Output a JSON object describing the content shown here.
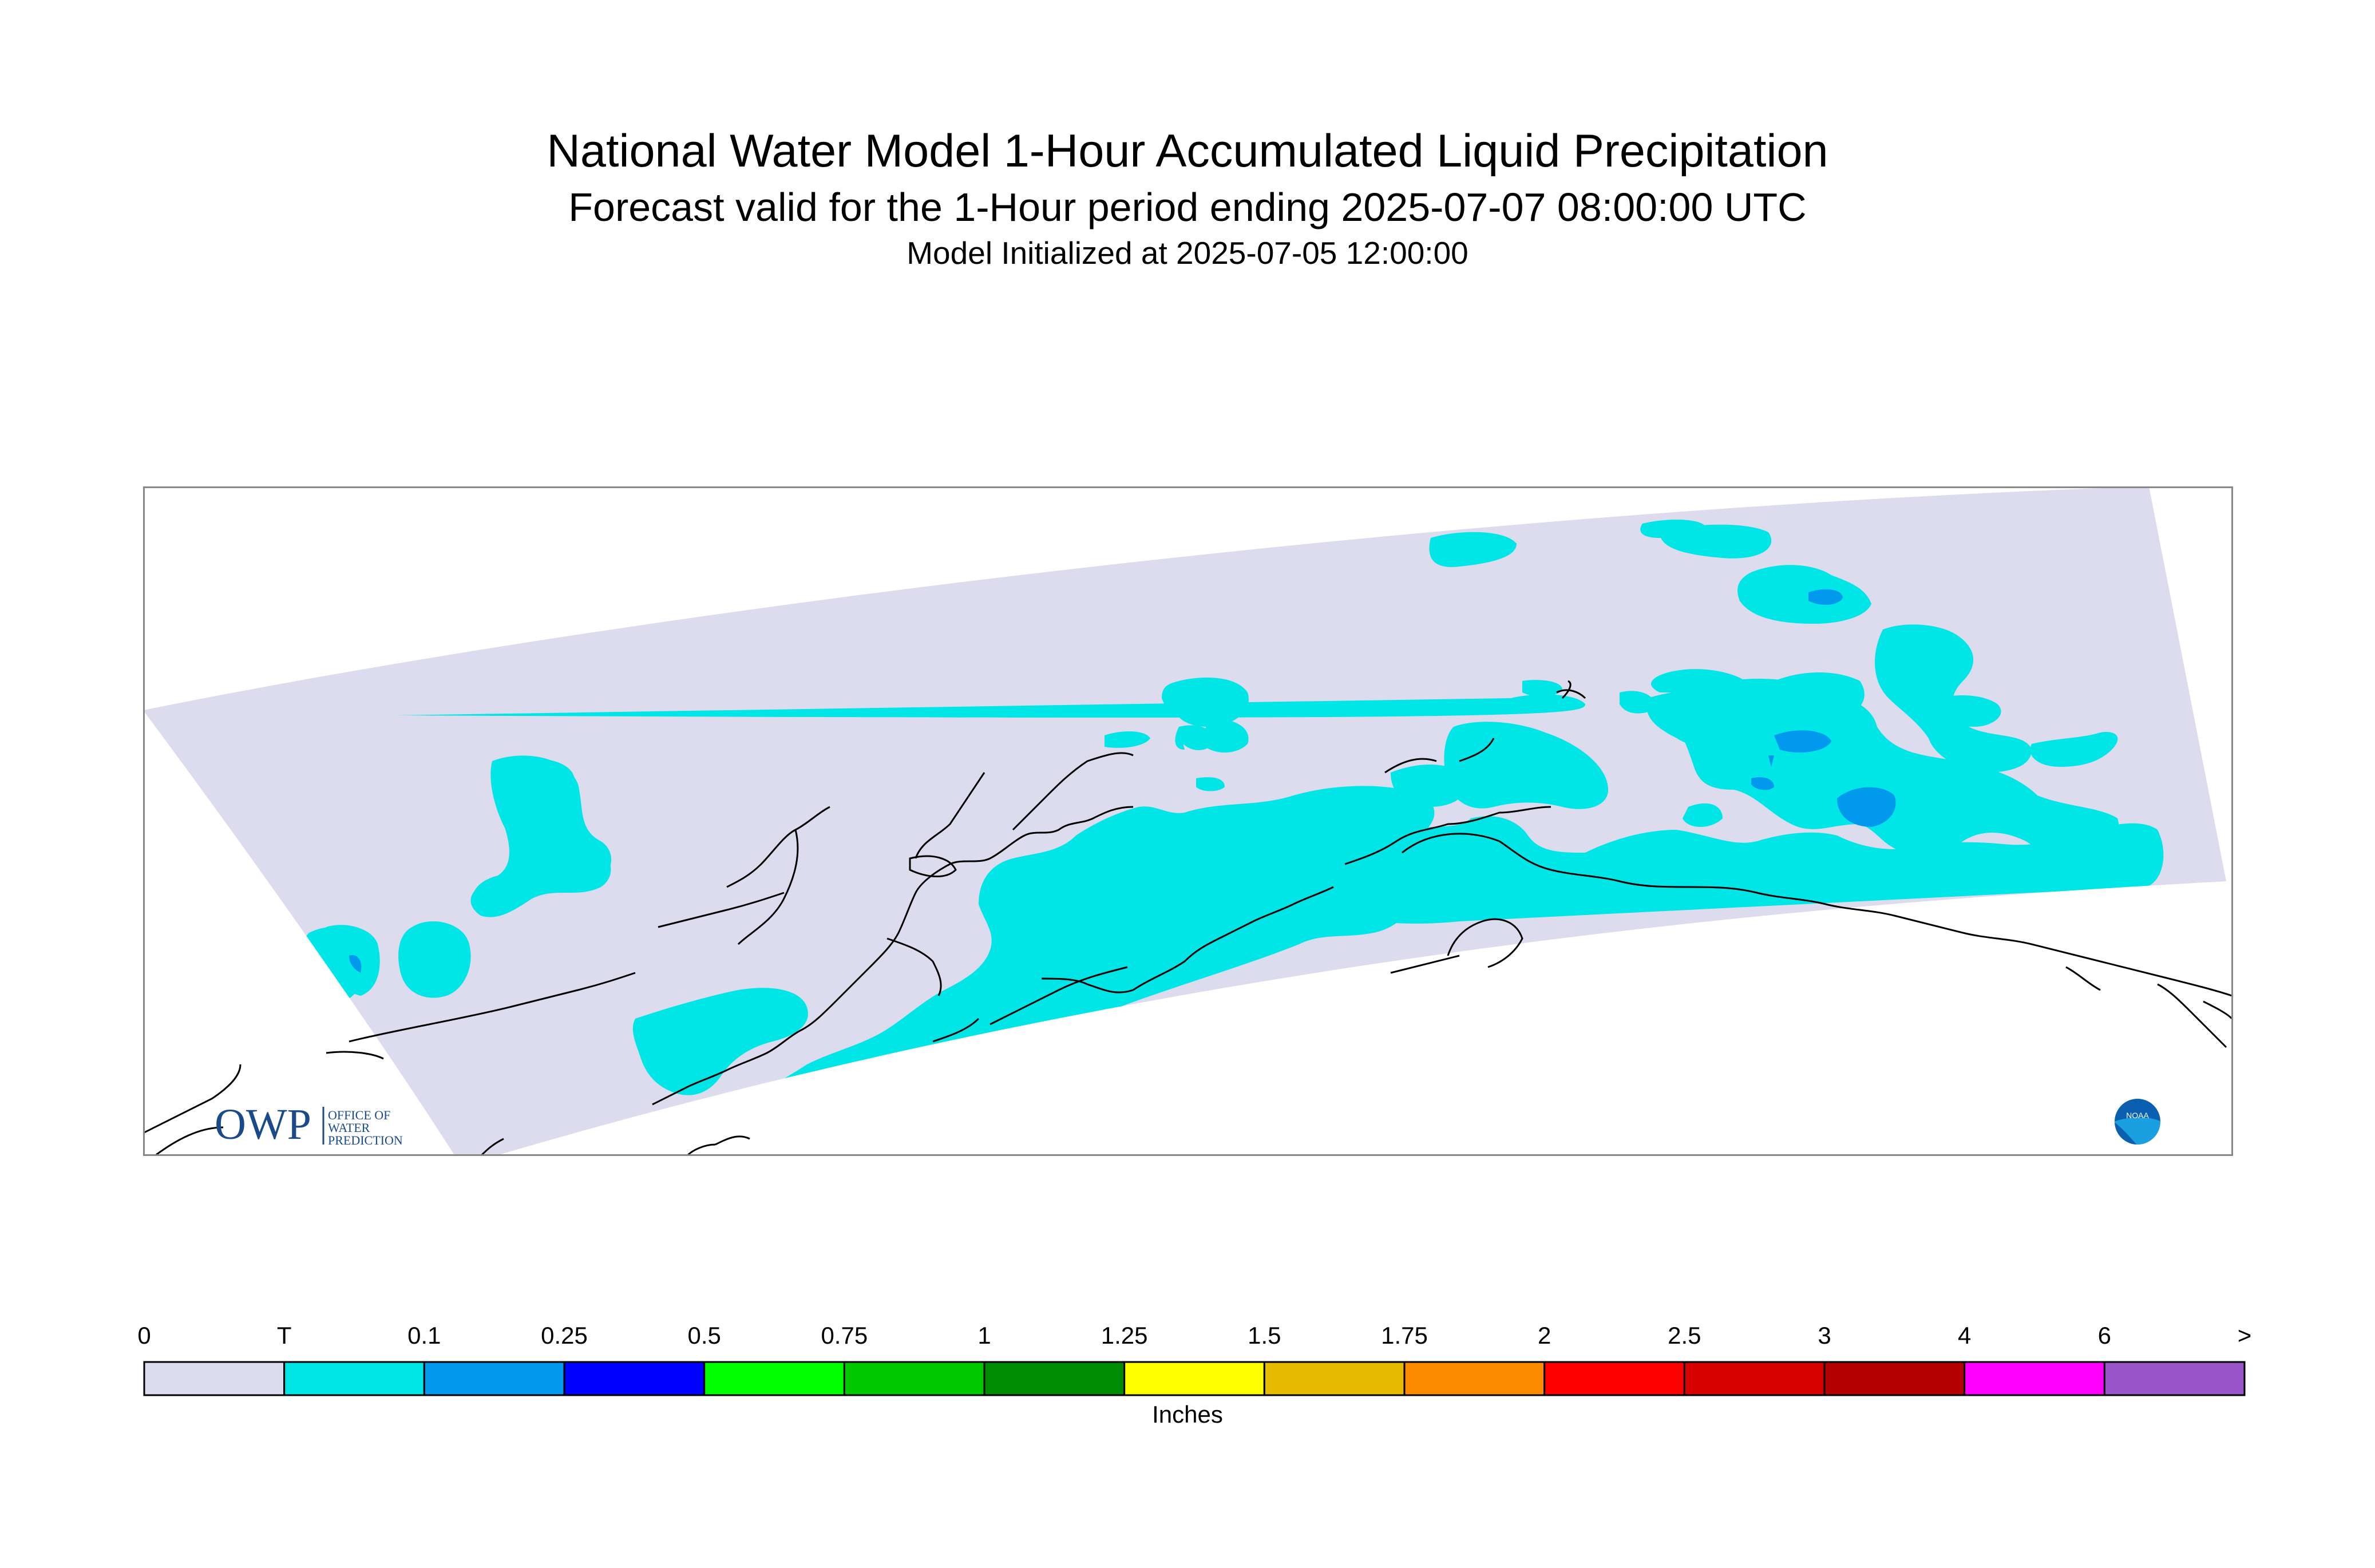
{
  "title": "National Water Model 1-Hour Accumulated Liquid Precipitation",
  "subtitle": "Forecast valid for the 1-Hour period ending 2025-07-07 08:00:00 UTC",
  "init_line": "Model Initialized at 2025-07-05 12:00:00",
  "logos": {
    "owp": {
      "mark": "OWP",
      "lines": [
        "OFFICE OF",
        "WATER",
        "PREDICTION"
      ]
    },
    "noaa": {
      "text": "NOAA"
    }
  },
  "colors": {
    "background": "#dcdcee",
    "trace": "#00e5e5",
    "light_blue": "#0099ee",
    "coastline": "#000000"
  },
  "legend": {
    "units": "Inches",
    "tick_labels": [
      "0",
      "T",
      "0.1",
      "0.25",
      "0.5",
      "0.75",
      "1",
      "1.25",
      "1.5",
      "1.75",
      "2",
      "2.5",
      "3",
      "4",
      "6",
      ">"
    ],
    "bins": [
      {
        "from": "0",
        "to": "T",
        "color": "#dcdcee"
      },
      {
        "from": "T",
        "to": "0.1",
        "color": "#00e5e5"
      },
      {
        "from": "0.1",
        "to": "0.25",
        "color": "#0099ee"
      },
      {
        "from": "0.25",
        "to": "0.5",
        "color": "#0000ff"
      },
      {
        "from": "0.5",
        "to": "0.75",
        "color": "#00ff00"
      },
      {
        "from": "0.75",
        "to": "1",
        "color": "#00c800"
      },
      {
        "from": "1",
        "to": "1.25",
        "color": "#008c00"
      },
      {
        "from": "1.25",
        "to": "1.5",
        "color": "#ffff00"
      },
      {
        "from": "1.5",
        "to": "1.75",
        "color": "#e5bc00"
      },
      {
        "from": "1.75",
        "to": "2",
        "color": "#ff8c00"
      },
      {
        "from": "2",
        "to": "2.5",
        "color": "#ff0000"
      },
      {
        "from": "2.5",
        "to": "3",
        "color": "#d70000"
      },
      {
        "from": "3",
        "to": "4",
        "color": "#b40000"
      },
      {
        "from": "4",
        "to": "6",
        "color": "#ff00ff"
      },
      {
        "from": "6",
        "to": ">",
        "color": "#9955cc"
      }
    ]
  }
}
